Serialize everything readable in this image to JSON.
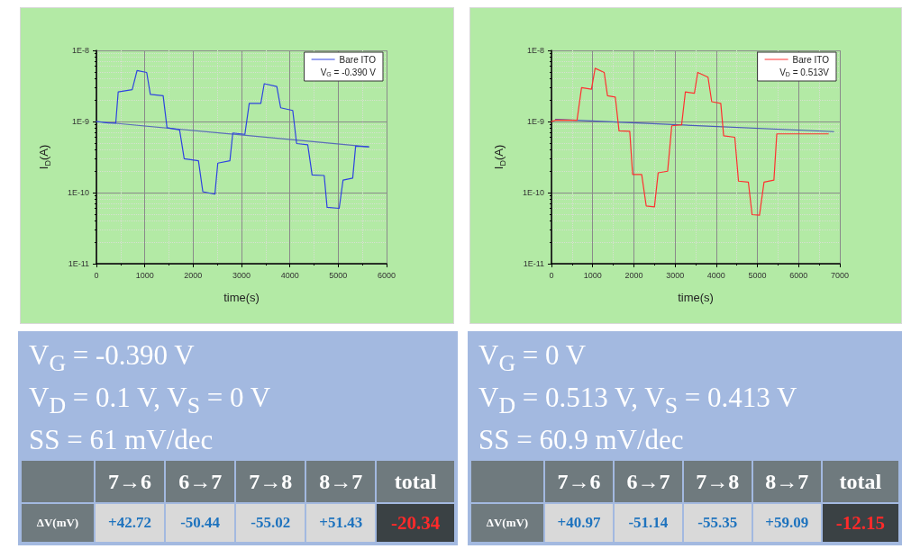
{
  "chart_data": [
    {
      "type": "line",
      "xlabel": "time(s)",
      "ylabel": "I$_{D}$(A)",
      "legend_title": "V$_{G}$ = -0.390 V",
      "log": "y",
      "grid": true,
      "legend": "top right",
      "marker": "none",
      "line_style": "solid",
      "xlim": [
        0,
        6000
      ],
      "xticks": [
        0,
        1000,
        2000,
        3000,
        4000,
        5000,
        6000
      ],
      "ylim": [
        1e-11,
        1e-08
      ],
      "yticks": [
        {
          "value": 1e-11,
          "label": "1E-11"
        },
        {
          "value": 1e-10,
          "label": "1E-10"
        },
        {
          "value": 1e-09,
          "label": "1E-9"
        },
        {
          "value": 1e-08,
          "label": "1E-8"
        }
      ],
      "series": [
        {
          "name": "Bare ITO",
          "color": "#2e43e0",
          "x": [
            0,
            250,
            400,
            450,
            740,
            840,
            1040,
            1115,
            1380,
            1460,
            1720,
            1815,
            2110,
            2200,
            2450,
            2510,
            2760,
            2820,
            3070,
            3160,
            3400,
            3470,
            3730,
            3810,
            4060,
            4140,
            4370,
            4460,
            4710,
            4770,
            5020,
            5100,
            5300,
            5360,
            5630
          ],
          "values": [
            1e-09,
            9.5e-10,
            9.5e-10,
            2.6e-09,
            2.8e-09,
            5.2e-09,
            4.9e-09,
            2.4e-09,
            2.3e-09,
            8.2e-10,
            7.6e-10,
            3e-10,
            2.8e-10,
            1.03e-10,
            9.5e-11,
            2.6e-10,
            2.8e-10,
            6.9e-10,
            6.6e-10,
            1.8e-09,
            1.8e-09,
            3.4e-09,
            3.1e-09,
            1.56e-09,
            1.43e-09,
            4.9e-10,
            4.7e-10,
            1.77e-10,
            1.74e-10,
            6.2e-11,
            6e-11,
            1.5e-10,
            1.6e-10,
            4.5e-10,
            4.4e-10
          ]
        },
        {
          "color": "#5a6cb8",
          "x": [
            0,
            5630
          ],
          "values": [
            1e-09,
            4.4e-10
          ]
        }
      ]
    },
    {
      "type": "line",
      "xlabel": "time(s)",
      "ylabel": "I$_{D}$(A)",
      "legend_title": "V$_{D}$ = 0.513V",
      "log": "y",
      "grid": true,
      "legend": "top right",
      "marker": "none",
      "line_style": "solid",
      "xlim": [
        0,
        7000
      ],
      "xticks": [
        0,
        1000,
        2000,
        3000,
        4000,
        5000,
        6000,
        7000
      ],
      "ylim": [
        1e-11,
        1e-08
      ],
      "yticks": [
        {
          "value": 1e-11,
          "label": "1E-11"
        },
        {
          "value": 1e-10,
          "label": "1E-10"
        },
        {
          "value": 1e-09,
          "label": "1E-9"
        },
        {
          "value": 1e-08,
          "label": "1E-8"
        }
      ],
      "series": [
        {
          "name": "Bare ITO",
          "color": "#ff3030",
          "x": [
            0,
            110,
            620,
            730,
            970,
            1060,
            1280,
            1360,
            1550,
            1640,
            1900,
            1970,
            2190,
            2300,
            2500,
            2590,
            2820,
            2920,
            3160,
            3250,
            3470,
            3550,
            3800,
            3890,
            4110,
            4180,
            4450,
            4540,
            4780,
            4870,
            5050,
            5160,
            5400,
            5470,
            6720
          ],
          "values": [
            1e-09,
            1.05e-09,
            1.04e-09,
            3e-09,
            2.85e-09,
            5.6e-09,
            4.9e-09,
            2.3e-09,
            2.2e-09,
            7.4e-10,
            7.3e-10,
            1.8e-10,
            1.8e-10,
            6.5e-11,
            6.3e-11,
            1.9e-10,
            2e-10,
            8.7e-10,
            9e-10,
            2.6e-09,
            2.5e-09,
            4.9e-09,
            4.2e-09,
            1.9e-09,
            1.8e-09,
            6.3e-10,
            6e-10,
            1.45e-10,
            1.4e-10,
            4.9e-11,
            4.8e-11,
            1.4e-10,
            1.5e-10,
            6.7e-10,
            6.7e-10
          ]
        },
        {
          "color": "#4a5ab8",
          "x": [
            100,
            6850
          ],
          "values": [
            1.07e-09,
            7.2e-10
          ]
        }
      ]
    },
    {
      "type": "other",
      "annotations": [
        "V$_{G}$ = -0.390 V",
        "V$_{D}$ = 0.1 V, V$_{S}$ = 0 V",
        "SS = 61 mV/dec"
      ],
      "ylabel": "ΔV(mV)",
      "categories": [
        "7→6",
        "6→7",
        "7→8",
        "8→7",
        "total"
      ],
      "value_labels": [
        "+42.72",
        "-50.44",
        "-55.02",
        "+51.43",
        "-20.34"
      ]
    },
    {
      "type": "other",
      "annotations": [
        "V$_{G}$ = 0 V",
        "V$_{D}$ = 0.513 V, V$_{S}$ = 0.413 V",
        "SS = 60.9 mV/dec"
      ],
      "ylabel": "ΔV(mV)",
      "categories": [
        "7→6",
        "6→7",
        "7→8",
        "8→7",
        "total"
      ],
      "value_labels": [
        "+40.97",
        "-51.14",
        "-55.35",
        "+59.09",
        "-12.15"
      ]
    }
  ]
}
